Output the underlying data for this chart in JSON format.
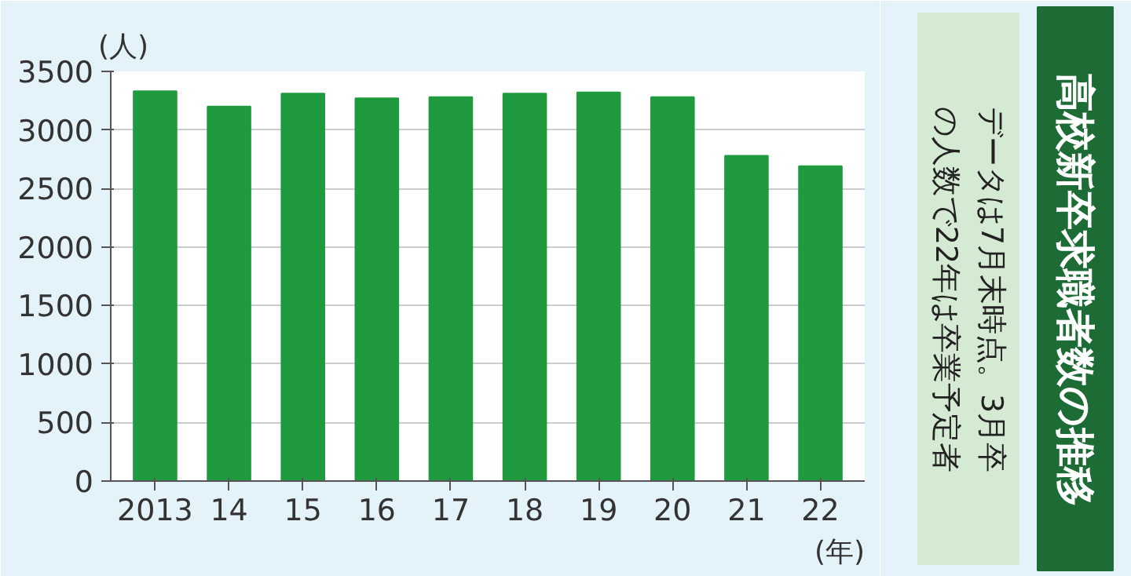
{
  "chart_data": {
    "type": "bar",
    "title": "高校新卒求職者数の推移",
    "xlabel": "(年)",
    "ylabel": "(人)",
    "annotations": [
      "データは7月末時点。3月卒の人数で22年は卒業予定者"
    ],
    "categories": [
      "2013",
      "14",
      "15",
      "16",
      "17",
      "18",
      "19",
      "20",
      "21",
      "22"
    ],
    "values": [
      3330,
      3200,
      3310,
      3270,
      3280,
      3310,
      3320,
      3280,
      2780,
      2690
    ],
    "color": "#1f9a3f",
    "ylim": [
      0,
      3500
    ],
    "yticks": [
      0,
      500,
      1000,
      1500,
      2000,
      2500,
      3000,
      3500
    ],
    "grid": "y"
  }
}
